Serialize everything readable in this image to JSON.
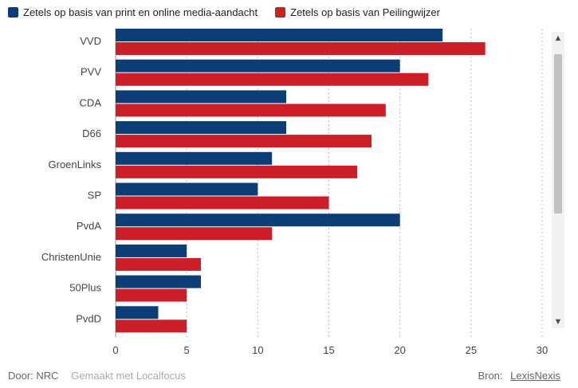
{
  "legend": {
    "series1": "Zetels op basis van print en online media-aandacht",
    "series2": "Zetels op basis van Peilingwijzer"
  },
  "colors": {
    "series1": "#0b3d77",
    "series2": "#cc1e28",
    "grid": "#bbbbbb",
    "axis_text": "#444444"
  },
  "chart_data": {
    "type": "bar",
    "orientation": "horizontal",
    "categories": [
      "VVD",
      "PVV",
      "CDA",
      "D66",
      "GroenLinks",
      "SP",
      "PvdA",
      "ChristenUnie",
      "50Plus",
      "PvdD"
    ],
    "series": [
      {
        "name": "Zetels op basis van print en online media-aandacht",
        "values": [
          23,
          20,
          12,
          12,
          11,
          10,
          20,
          5,
          6,
          3
        ]
      },
      {
        "name": "Zetels op basis van Peilingwijzer",
        "values": [
          26,
          22,
          19,
          18,
          17,
          15,
          11,
          6,
          5,
          5
        ]
      }
    ],
    "xlim": [
      0,
      30
    ],
    "xticks": [
      0,
      5,
      10,
      15,
      20,
      25,
      30
    ],
    "grid": true,
    "legend_position": "top-left"
  },
  "footer": {
    "author": "Door: NRC",
    "tool": "Gemaakt met Localfocus",
    "source_label": "Bron:",
    "source_link": "LexisNexis"
  },
  "scrollbar": {
    "up_icon": "▲",
    "down_icon": "▼"
  }
}
